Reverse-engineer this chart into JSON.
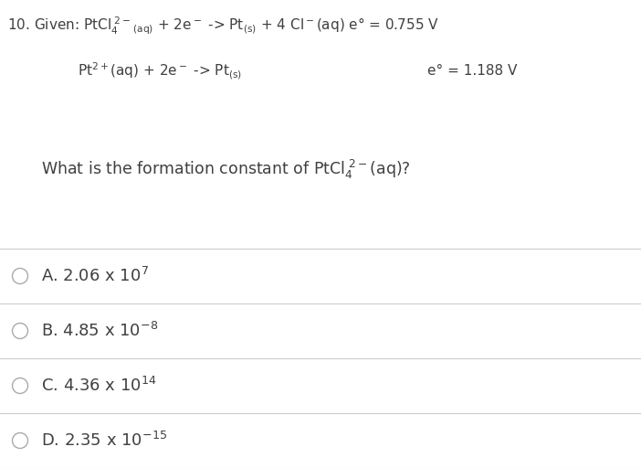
{
  "bg_color": "#ffffff",
  "text_color": "#404040",
  "line_color": "#cccccc",
  "circle_color": "#aaaaaa",
  "figsize": [
    7.02,
    5.12
  ],
  "dpi": 100,
  "fontsize_main": 11.0,
  "fontsize_question": 12.5,
  "fontsize_choice": 13.0
}
